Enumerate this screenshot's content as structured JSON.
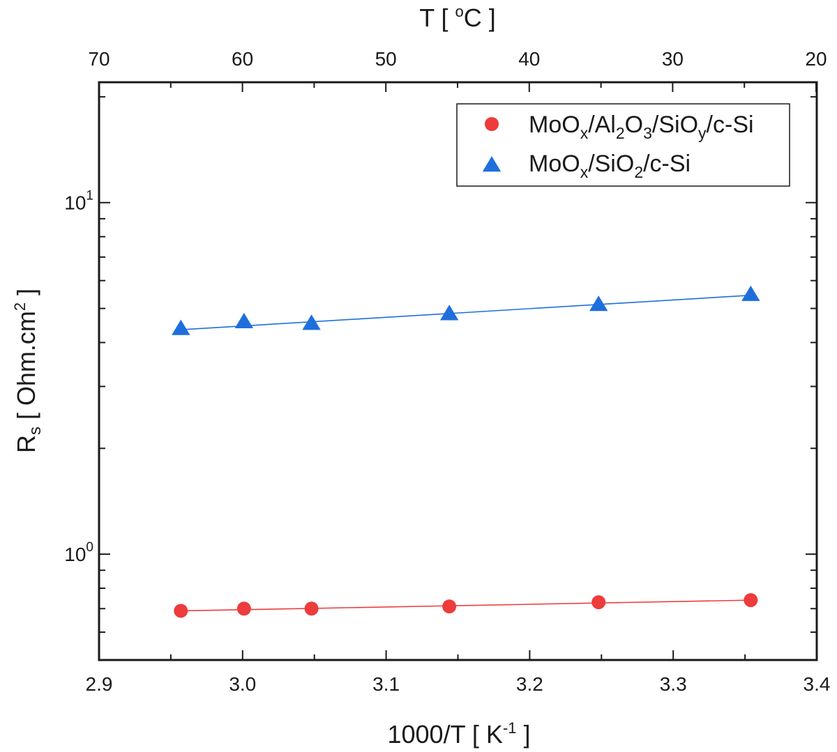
{
  "chart_data": {
    "type": "scatter",
    "x_axis": {
      "label_main": "1000/T [ K",
      "label_sup": "-1",
      "label_end": " ]",
      "range": [
        2.9,
        3.4
      ],
      "ticks": [
        2.9,
        3.0,
        3.1,
        3.2,
        3.3,
        3.4
      ],
      "tick_labels": [
        "2.9",
        "3.0",
        "3.1",
        "3.2",
        "3.3",
        "3.4"
      ]
    },
    "top_axis": {
      "label_main": "T [ ",
      "label_sup": "o",
      "label_end": "C ]",
      "unit": "°C",
      "ticks": [
        70,
        60,
        50,
        40,
        30,
        20
      ],
      "tick_labels": [
        "70",
        "60",
        "50",
        "40",
        "30",
        "20"
      ]
    },
    "y_axis": {
      "label_main": "R",
      "label_sub": "s",
      "label_end": " [ Ohm.cm",
      "label_sup": "2",
      "label_close": " ]",
      "scale": "log",
      "range": [
        0.5,
        22
      ],
      "major_ticks": [
        1,
        10
      ],
      "major_tick_labels": [
        {
          "base": "10",
          "exp": "0"
        },
        {
          "base": "10",
          "exp": "1"
        }
      ],
      "minor_ticks": [
        0.6,
        0.7,
        0.8,
        0.9,
        2,
        3,
        4,
        5,
        6,
        7,
        8,
        9,
        20
      ]
    },
    "series": [
      {
        "name": "MoOx/Al2O3/SiOy/c-Si",
        "marker": "circle",
        "color": "#ee3b3b",
        "x": [
          2.957,
          3.001,
          3.048,
          3.144,
          3.248,
          3.354
        ],
        "y": [
          0.69,
          0.7,
          0.7,
          0.71,
          0.73,
          0.74
        ],
        "fit": {
          "x": [
            2.957,
            3.354
          ],
          "y": [
            0.69,
            0.74
          ]
        }
      },
      {
        "name": "MoOx/SiO2/c-Si",
        "marker": "triangle",
        "color": "#1e6fdc",
        "x": [
          2.957,
          3.001,
          3.048,
          3.144,
          3.248,
          3.354
        ],
        "y": [
          4.4,
          4.6,
          4.55,
          4.85,
          5.15,
          5.5
        ],
        "fit": {
          "x": [
            2.957,
            3.354
          ],
          "y": [
            4.35,
            5.45
          ]
        }
      }
    ],
    "legend": {
      "position": "top-right",
      "entries": [
        {
          "parts": [
            {
              "t": "MoO",
              "s": "n"
            },
            {
              "t": "x",
              "s": "sub"
            },
            {
              "t": "/Al",
              "s": "n"
            },
            {
              "t": "2",
              "s": "sub"
            },
            {
              "t": "O",
              "s": "n"
            },
            {
              "t": "3",
              "s": "sub"
            },
            {
              "t": "/SiO",
              "s": "n"
            },
            {
              "t": "y",
              "s": "sub"
            },
            {
              "t": "/c-Si",
              "s": "n"
            }
          ]
        },
        {
          "parts": [
            {
              "t": "MoO",
              "s": "n"
            },
            {
              "t": "x",
              "s": "sub"
            },
            {
              "t": "/SiO",
              "s": "n"
            },
            {
              "t": "2",
              "s": "sub"
            },
            {
              "t": "/c-Si",
              "s": "n"
            }
          ]
        }
      ]
    },
    "grid": false
  }
}
